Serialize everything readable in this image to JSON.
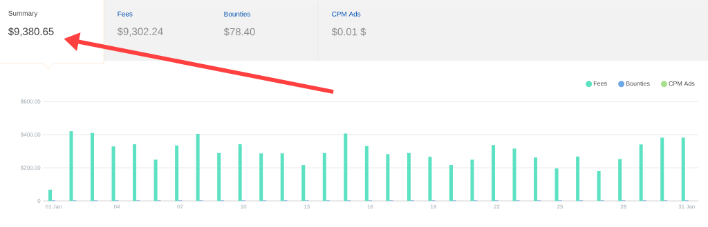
{
  "chart_data": {
    "type": "bar",
    "categories": [
      "01 Jan",
      null,
      null,
      "04",
      null,
      null,
      "07",
      null,
      null,
      "10",
      null,
      null,
      "13",
      null,
      null,
      "16",
      null,
      null,
      "19",
      null,
      null,
      "22",
      null,
      null,
      "25",
      null,
      null,
      "28",
      null,
      null,
      "31 Jan"
    ],
    "series": [
      {
        "name": "Fees",
        "color": "#5ce1c2",
        "values": [
          68,
          421,
          410,
          329,
          342,
          249,
          335,
          405,
          289,
          342,
          287,
          287,
          217,
          289,
          407,
          331,
          282,
          289,
          266,
          217,
          249,
          337,
          316,
          262,
          196,
          268,
          180,
          253,
          341,
          382,
          382
        ]
      },
      {
        "name": "Bounties",
        "color": "#6ea8e6",
        "values": [
          3,
          3,
          3,
          3,
          3,
          3,
          3,
          3,
          3,
          3,
          3,
          3,
          3,
          3,
          3,
          3,
          3,
          3,
          3,
          3,
          3,
          3,
          3,
          3,
          3,
          3,
          3,
          3,
          3,
          3,
          3
        ]
      },
      {
        "name": "CPM Ads",
        "color": "#a6e08c",
        "values": [
          0,
          0,
          0,
          0,
          0,
          0,
          0,
          0,
          0,
          0,
          0,
          0,
          0,
          0,
          0,
          0,
          0,
          0,
          0,
          0,
          0,
          0,
          0,
          0,
          0,
          0,
          0,
          0,
          0,
          0,
          0
        ]
      }
    ],
    "ylim": [
      0,
      600
    ],
    "yticks": [
      0,
      {
        "value": 200,
        "label": "$200.00"
      },
      {
        "value": 400,
        "label": "$400.00"
      },
      {
        "value": 600,
        "label": "$600.00"
      }
    ],
    "grid": "y",
    "legend": "top right",
    "annotations": [
      "Summary",
      "$9,380.65",
      "Fees",
      "$9,302.24",
      "Bounties",
      "$78.40",
      "CPM Ads",
      "$0.01 $"
    ]
  }
}
